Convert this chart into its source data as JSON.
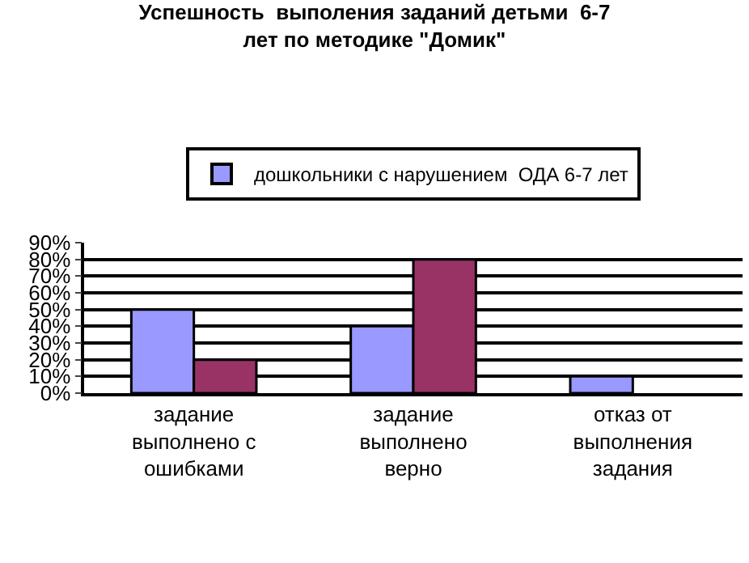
{
  "chart_data": {
    "type": "bar",
    "title": "Успешность  выполения заданий детьми  6-7\nлет по методике \"Домик\"",
    "categories": [
      "задание выполнено с ошибками",
      "задание выполнено верно",
      "отказ от выполнения задания"
    ],
    "series": [
      {
        "name": "дошкольники с нарушением  ОДА 6-7 лет",
        "color": "#9999ff",
        "values": [
          50,
          40,
          10
        ]
      },
      {
        "color": "#993366",
        "values": [
          20,
          80,
          null
        ]
      }
    ],
    "ylim": [
      0,
      90
    ],
    "yticks": [
      {
        "value": 0,
        "label": "0%"
      },
      {
        "value": 10,
        "label": "10%"
      },
      {
        "value": 20,
        "label": "20%"
      },
      {
        "value": 30,
        "label": "30%"
      },
      {
        "value": 40,
        "label": "40%"
      },
      {
        "value": 50,
        "label": "50%"
      },
      {
        "value": 60,
        "label": "60%"
      },
      {
        "value": 70,
        "label": "70%"
      },
      {
        "value": 80,
        "label": "80%"
      },
      {
        "value": 90,
        "label": "90%"
      }
    ],
    "grid": "y",
    "legend": "top"
  }
}
